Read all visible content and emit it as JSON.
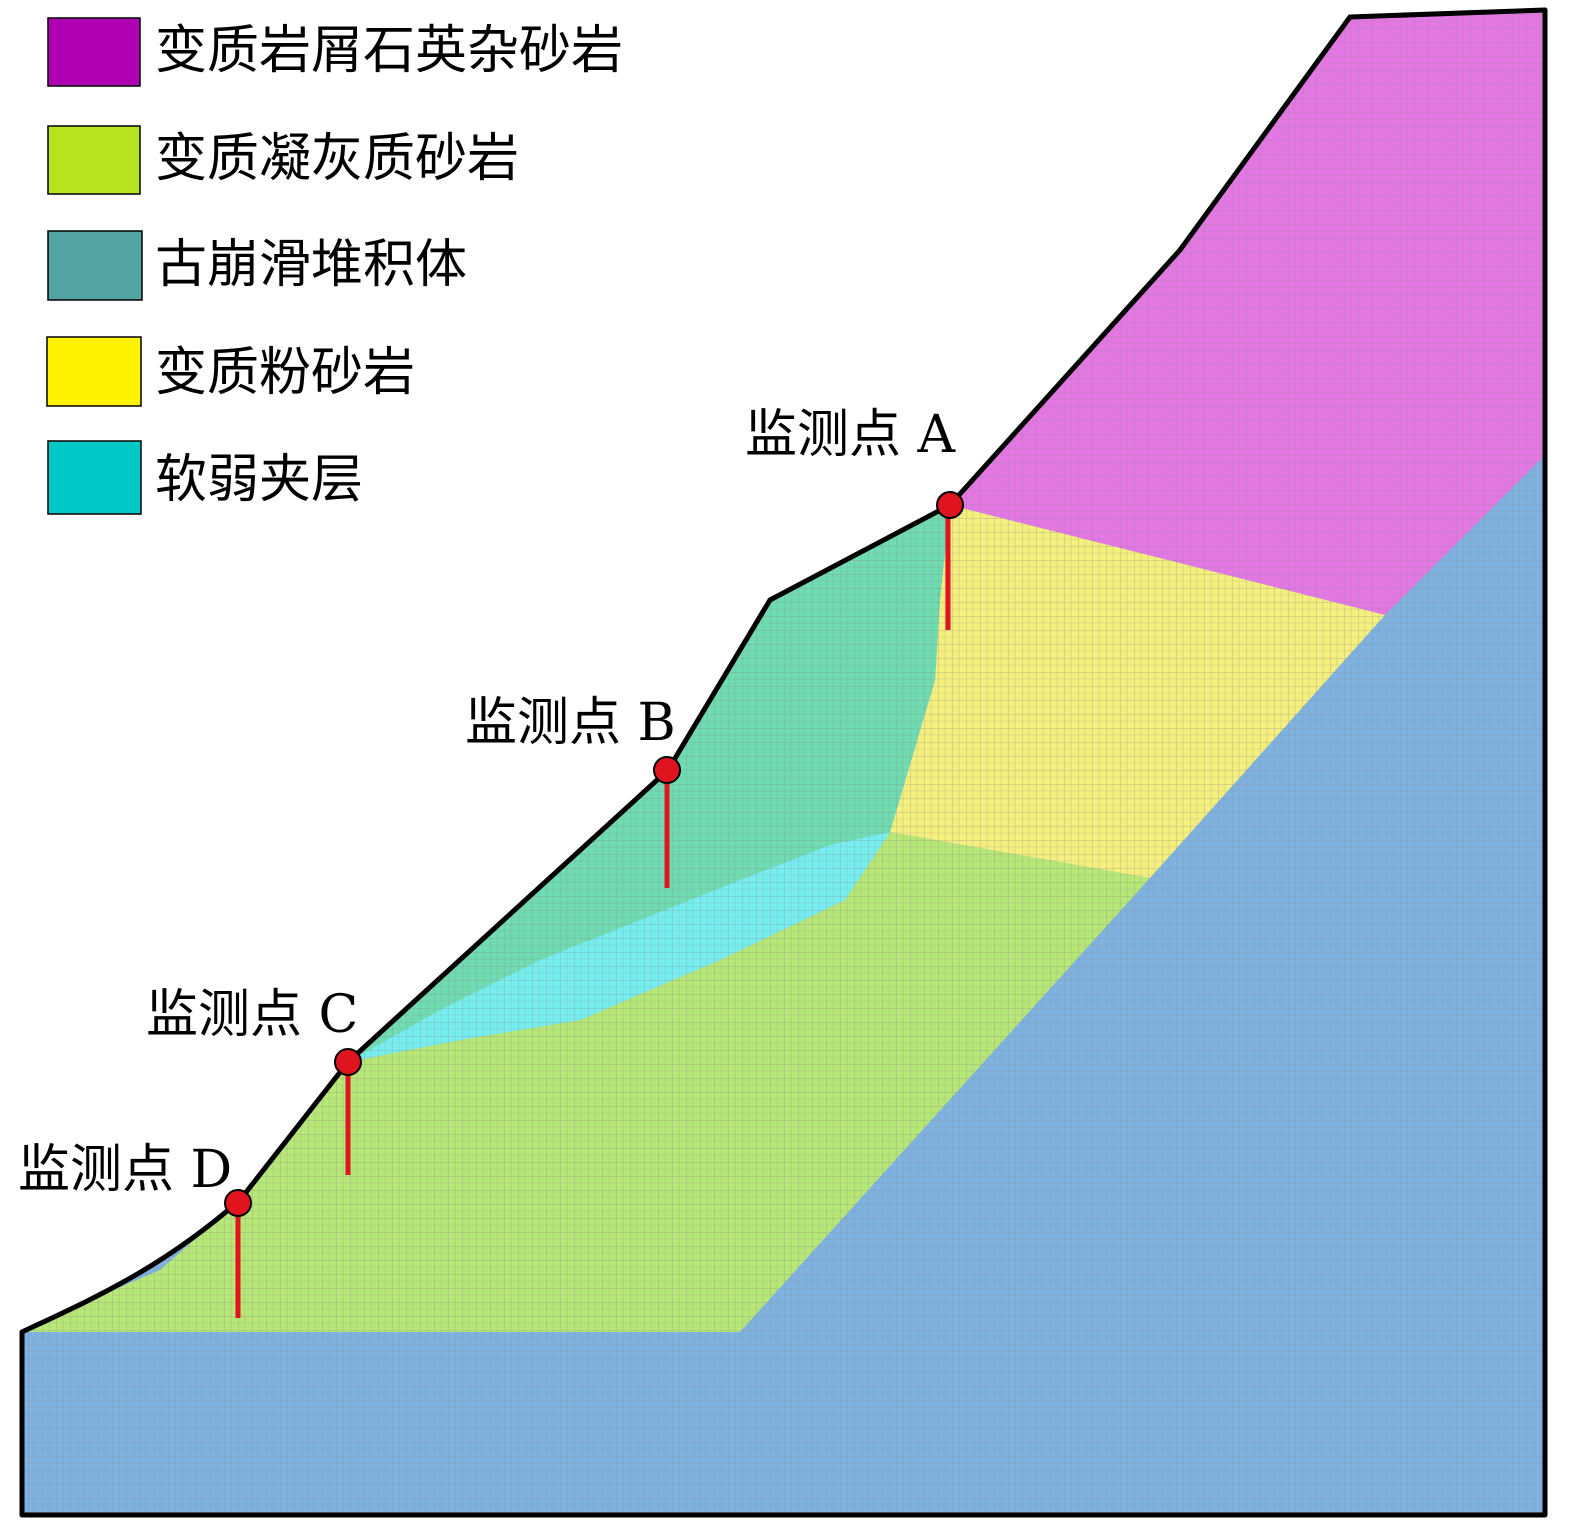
{
  "legend": [
    {
      "key": "metamorphic-debris-quartz-sandstone",
      "label": "变质岩屑石英杂砂岩",
      "color": "#b100b3"
    },
    {
      "key": "metamorphic-tuffaceous-sandstone",
      "label": "变质凝灰质砂岩",
      "color": "#b5e31e"
    },
    {
      "key": "ancient-landslide-deposit",
      "label": "古崩滑堆积体",
      "color": "#53a3a3"
    },
    {
      "key": "metamorphic-siltstone",
      "label": "变质粉砂岩",
      "color": "#fff200"
    },
    {
      "key": "weak-interlayer",
      "label": "软弱夹层",
      "color": "#00c8c8"
    }
  ],
  "layers": [
    {
      "key": "bedrock",
      "color": "#7eb2e0"
    },
    {
      "key": "metamorphic-debris-quartz-sandstone",
      "color": "#e577e5"
    },
    {
      "key": "metamorphic-siltstone",
      "color": "#f5ef7e"
    },
    {
      "key": "metamorphic-tuffaceous-sandstone",
      "color": "#b7e877"
    },
    {
      "key": "ancient-landslide-deposit",
      "color": "#6fdcb1"
    },
    {
      "key": "weak-interlayer",
      "color": "#76eef0"
    }
  ],
  "monitoring_points": [
    {
      "id": "A",
      "label": "监测点 A"
    },
    {
      "id": "B",
      "label": "监测点 B"
    },
    {
      "id": "C",
      "label": "监测点 C"
    },
    {
      "id": "D",
      "label": "监测点 D"
    }
  ],
  "colors": {
    "outline": "#000000",
    "marker": "#e0141e",
    "mesh": "#8a8a8a"
  }
}
